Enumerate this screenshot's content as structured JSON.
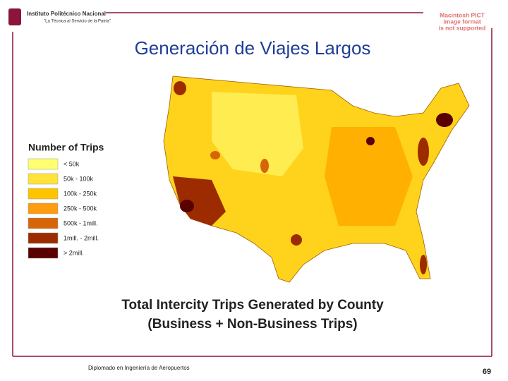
{
  "header": {
    "institution": "Instituto Politécnico Nacional",
    "motto": "\"La Técnica al Servicio de la Patria\""
  },
  "placeholder": {
    "lines": [
      "Macintosh PICT",
      "image format",
      "is not supported"
    ]
  },
  "title": "Generación de Viajes Largos",
  "legend": {
    "title": "Number of Trips",
    "items": [
      {
        "label": "< 50k",
        "color": "#ffff70"
      },
      {
        "label": "50k - 100k",
        "color": "#ffe23a"
      },
      {
        "label": "100k - 250k",
        "color": "#ffc400"
      },
      {
        "label": "250k - 500k",
        "color": "#ff9c10"
      },
      {
        "label": "500k - 1mill.",
        "color": "#d86408"
      },
      {
        "label": "1mill. - 2mill.",
        "color": "#9c2c00"
      },
      {
        "label": "> 2mill.",
        "color": "#5a0000"
      }
    ]
  },
  "caption": [
    "Total Intercity Trips Generated by County",
    "(Business + Non-Business Trips)"
  ],
  "footer": {
    "text": "Diplomado en Ingeniería de Aeropuertos",
    "page": "69"
  }
}
